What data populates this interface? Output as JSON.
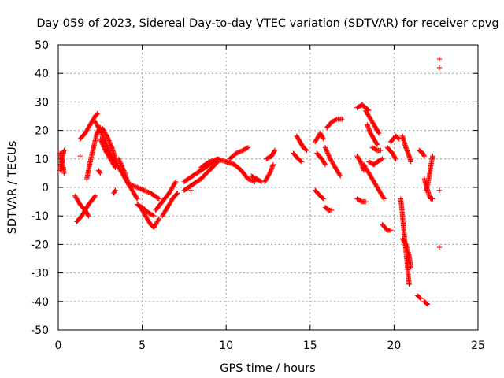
{
  "chart_data": {
    "type": "scatter",
    "title": "Day 059 of 2023, Sidereal Day-to-day VTEC variation (SDTVAR) for receiver cpvg",
    "xlabel": "GPS time / hours",
    "ylabel": "SDTVAR / TECUs",
    "xlim": [
      0,
      25
    ],
    "ylim": [
      -50,
      50
    ],
    "xticks": [
      0,
      5,
      10,
      15,
      20,
      25
    ],
    "yticks": [
      -50,
      -40,
      -30,
      -20,
      -10,
      0,
      10,
      20,
      30,
      40,
      50
    ],
    "grid": true,
    "marker": "+",
    "color": "#ff0000",
    "tracks": [
      {
        "points": [
          [
            0.1,
            12
          ],
          [
            0.2,
            10
          ],
          [
            0.3,
            7
          ],
          [
            0.35,
            5
          ]
        ]
      },
      {
        "points": [
          [
            0.1,
            6
          ],
          [
            0.2,
            9
          ],
          [
            0.3,
            12
          ],
          [
            0.35,
            13
          ]
        ]
      },
      {
        "points": [
          [
            1.0,
            -3
          ],
          [
            1.3,
            -6
          ],
          [
            1.6,
            -8
          ],
          [
            1.8,
            -10
          ]
        ]
      },
      {
        "points": [
          [
            1.1,
            -12
          ],
          [
            1.4,
            -10
          ],
          [
            1.8,
            -6
          ],
          [
            2.2,
            -3
          ]
        ]
      },
      {
        "points": [
          [
            1.3,
            17
          ],
          [
            1.6,
            19
          ],
          [
            1.9,
            22
          ],
          [
            2.2,
            25
          ],
          [
            2.35,
            26
          ]
        ]
      },
      {
        "points": [
          [
            1.7,
            3
          ],
          [
            1.9,
            9
          ],
          [
            2.1,
            14
          ],
          [
            2.3,
            19
          ],
          [
            2.5,
            21
          ]
        ]
      },
      {
        "points": [
          [
            2.2,
            23
          ],
          [
            2.5,
            20
          ],
          [
            2.8,
            16
          ],
          [
            3.1,
            12
          ],
          [
            3.3,
            9
          ]
        ]
      },
      {
        "points": [
          [
            2.6,
            21
          ],
          [
            2.9,
            18
          ],
          [
            3.2,
            14
          ],
          [
            3.5,
            8
          ]
        ]
      },
      {
        "points": [
          [
            2.5,
            17
          ],
          [
            2.8,
            13
          ],
          [
            3.1,
            10
          ],
          [
            3.4,
            7
          ]
        ]
      },
      {
        "points": [
          [
            3.6,
            10
          ],
          [
            3.9,
            6
          ],
          [
            4.2,
            1
          ],
          [
            4.5,
            -2
          ],
          [
            4.7,
            -4
          ]
        ]
      },
      {
        "points": [
          [
            3.5,
            8
          ],
          [
            3.8,
            5
          ],
          [
            4.1,
            2
          ],
          [
            4.3,
            0
          ]
        ]
      },
      {
        "points": [
          [
            4.3,
            1
          ],
          [
            4.7,
            0
          ],
          [
            5.1,
            -1
          ],
          [
            5.5,
            -2
          ],
          [
            6.0,
            -4
          ]
        ]
      },
      {
        "points": [
          [
            4.7,
            -6
          ],
          [
            5.0,
            -7
          ],
          [
            5.4,
            -9
          ],
          [
            5.7,
            -10
          ]
        ]
      },
      {
        "points": [
          [
            4.9,
            -7
          ],
          [
            5.2,
            -10
          ],
          [
            5.5,
            -13
          ],
          [
            5.7,
            -14
          ],
          [
            6.0,
            -11
          ]
        ]
      },
      {
        "points": [
          [
            5.8,
            -8
          ],
          [
            6.2,
            -5
          ],
          [
            6.6,
            -2
          ],
          [
            7.0,
            2
          ]
        ]
      },
      {
        "points": [
          [
            6.2,
            -10
          ],
          [
            6.5,
            -7
          ],
          [
            6.8,
            -4
          ],
          [
            7.1,
            -2
          ]
        ]
      },
      {
        "points": [
          [
            7.5,
            2
          ],
          [
            8.0,
            4
          ],
          [
            8.5,
            6
          ],
          [
            9.0,
            8
          ],
          [
            9.5,
            10
          ]
        ]
      },
      {
        "points": [
          [
            7.5,
            -1
          ],
          [
            8.0,
            1
          ],
          [
            8.5,
            3
          ],
          [
            9.0,
            6
          ],
          [
            9.5,
            9
          ]
        ]
      },
      {
        "points": [
          [
            8.5,
            7
          ],
          [
            9.0,
            9
          ],
          [
            9.5,
            10
          ],
          [
            10.0,
            9
          ],
          [
            10.5,
            8
          ]
        ]
      },
      {
        "points": [
          [
            10.2,
            10
          ],
          [
            10.6,
            12
          ],
          [
            11.0,
            13
          ],
          [
            11.3,
            14
          ]
        ]
      },
      {
        "points": [
          [
            10.5,
            8
          ],
          [
            10.9,
            6
          ],
          [
            11.3,
            3
          ],
          [
            11.7,
            2
          ]
        ]
      },
      {
        "points": [
          [
            11.5,
            4
          ],
          [
            11.8,
            3
          ],
          [
            12.1,
            2
          ]
        ]
      },
      {
        "points": [
          [
            12.3,
            2
          ],
          [
            12.6,
            5
          ],
          [
            12.8,
            8
          ]
        ]
      },
      {
        "points": [
          [
            12.4,
            10
          ],
          [
            12.7,
            11
          ],
          [
            12.9,
            13
          ]
        ]
      },
      {
        "points": [
          [
            14.2,
            18
          ],
          [
            14.4,
            16
          ],
          [
            14.6,
            14
          ],
          [
            14.8,
            13
          ]
        ]
      },
      {
        "points": [
          [
            14.0,
            12
          ],
          [
            14.3,
            10
          ],
          [
            14.5,
            9
          ]
        ]
      },
      {
        "points": [
          [
            15.3,
            16
          ],
          [
            15.6,
            19
          ],
          [
            15.8,
            17
          ]
        ]
      },
      {
        "points": [
          [
            15.4,
            12
          ],
          [
            15.7,
            10
          ],
          [
            15.9,
            8
          ]
        ]
      },
      {
        "points": [
          [
            15.3,
            -1
          ],
          [
            15.6,
            -3
          ],
          [
            15.8,
            -4
          ]
        ]
      },
      {
        "points": [
          [
            15.9,
            -7
          ],
          [
            16.1,
            -8
          ],
          [
            16.3,
            -8
          ]
        ]
      },
      {
        "points": [
          [
            15.9,
            14
          ],
          [
            16.2,
            10
          ],
          [
            16.5,
            7
          ],
          [
            16.8,
            4
          ]
        ]
      },
      {
        "points": [
          [
            16.0,
            21
          ],
          [
            16.3,
            23
          ],
          [
            16.6,
            24
          ],
          [
            16.9,
            24
          ]
        ]
      },
      {
        "points": [
          [
            17.8,
            28
          ],
          [
            18.1,
            29
          ],
          [
            18.3,
            28
          ],
          [
            18.5,
            27
          ]
        ]
      },
      {
        "points": [
          [
            17.8,
            11
          ],
          [
            18.0,
            9
          ],
          [
            18.2,
            6
          ]
        ]
      },
      {
        "points": [
          [
            17.8,
            -4
          ],
          [
            18.1,
            -5
          ],
          [
            18.3,
            -5
          ]
        ]
      },
      {
        "points": [
          [
            18.4,
            22
          ],
          [
            18.6,
            19
          ],
          [
            18.8,
            17
          ],
          [
            19.0,
            15
          ]
        ]
      },
      {
        "points": [
          [
            18.7,
            14
          ],
          [
            19.0,
            13
          ],
          [
            19.2,
            13
          ]
        ]
      },
      {
        "points": [
          [
            18.5,
            9
          ],
          [
            18.8,
            8
          ],
          [
            19.0,
            9
          ],
          [
            19.3,
            10
          ]
        ]
      },
      {
        "points": [
          [
            18.2,
            8
          ],
          [
            18.5,
            5
          ],
          [
            18.8,
            2
          ],
          [
            19.1,
            -1
          ],
          [
            19.4,
            -4
          ]
        ]
      },
      {
        "points": [
          [
            18.3,
            27
          ],
          [
            18.6,
            24
          ],
          [
            18.9,
            21
          ],
          [
            19.1,
            19
          ]
        ]
      },
      {
        "points": [
          [
            19.6,
            14
          ],
          [
            19.9,
            12
          ],
          [
            20.1,
            10
          ]
        ]
      },
      {
        "points": [
          [
            19.8,
            16
          ],
          [
            20.1,
            18
          ],
          [
            20.3,
            17
          ]
        ]
      },
      {
        "points": [
          [
            19.3,
            -13
          ],
          [
            19.6,
            -15
          ],
          [
            19.8,
            -15
          ]
        ]
      },
      {
        "points": [
          [
            20.4,
            -4
          ],
          [
            20.5,
            -10
          ],
          [
            20.6,
            -16
          ],
          [
            20.7,
            -22
          ],
          [
            20.8,
            -28
          ],
          [
            20.9,
            -34
          ]
        ]
      },
      {
        "points": [
          [
            20.5,
            -18
          ],
          [
            20.7,
            -20
          ],
          [
            20.9,
            -24
          ],
          [
            21.0,
            -28
          ]
        ]
      },
      {
        "points": [
          [
            20.5,
            18
          ],
          [
            20.7,
            14
          ],
          [
            20.9,
            11
          ],
          [
            21.0,
            9
          ]
        ]
      },
      {
        "points": [
          [
            21.4,
            -38
          ],
          [
            21.6,
            -39
          ]
        ]
      },
      {
        "points": [
          [
            21.5,
            13
          ],
          [
            21.7,
            12
          ],
          [
            21.8,
            11
          ]
        ]
      },
      {
        "points": [
          [
            21.8,
            -40
          ],
          [
            22.0,
            -41
          ]
        ]
      },
      {
        "points": [
          [
            21.9,
            -1
          ],
          [
            22.0,
            1
          ],
          [
            22.1,
            4
          ],
          [
            22.2,
            8
          ],
          [
            22.3,
            11
          ]
        ]
      },
      {
        "points": [
          [
            21.8,
            3
          ],
          [
            22.0,
            -1
          ],
          [
            22.1,
            -3
          ],
          [
            22.2,
            -4
          ],
          [
            22.3,
            -4
          ]
        ]
      },
      {
        "points": [
          [
            22.7,
            45
          ]
        ]
      },
      {
        "points": [
          [
            22.7,
            42
          ]
        ]
      },
      {
        "points": [
          [
            22.7,
            -1
          ]
        ]
      },
      {
        "points": [
          [
            22.7,
            -21
          ]
        ]
      },
      {
        "points": [
          [
            2.4,
            6
          ],
          [
            2.5,
            5
          ]
        ]
      },
      {
        "points": [
          [
            1.3,
            11
          ]
        ]
      },
      {
        "points": [
          [
            3.3,
            -2
          ],
          [
            3.4,
            -1
          ]
        ]
      },
      {
        "points": [
          [
            7.9,
            -1
          ]
        ]
      }
    ]
  }
}
